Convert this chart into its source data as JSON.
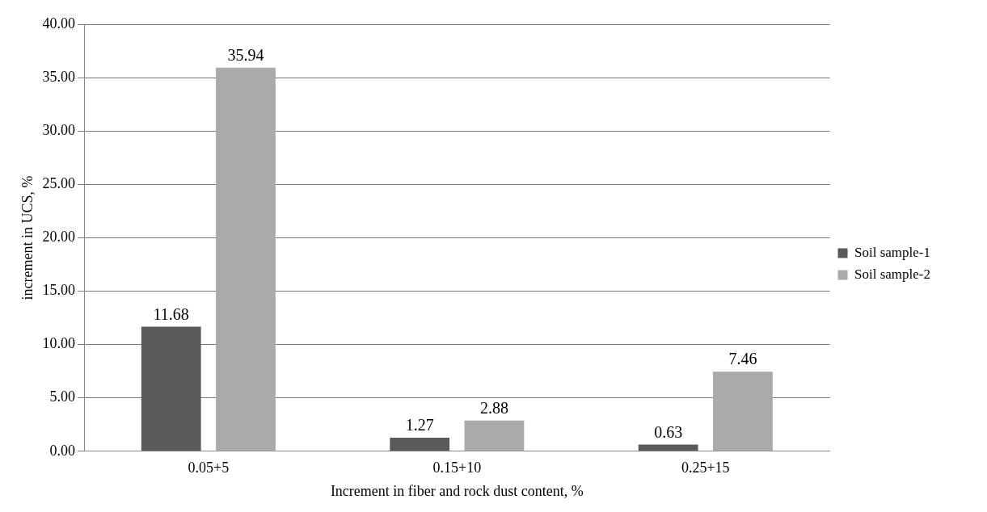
{
  "chart_data": {
    "type": "bar",
    "xlabel": "Increment in fiber and rock dust content, %",
    "ylabel": "increment in UCS, %",
    "categories": [
      "0.05+5",
      "0.15+10",
      "0.25+15"
    ],
    "series": [
      {
        "name": "Soil sample-1",
        "color": "#5a5a5a",
        "values": [
          11.68,
          1.27,
          0.63
        ]
      },
      {
        "name": "Soil sample-2",
        "color": "#aaaaaa",
        "values": [
          35.94,
          2.88,
          7.46
        ]
      }
    ],
    "ylim": [
      0,
      40
    ],
    "yticks": [
      {
        "value": 0,
        "label": "0.00"
      },
      {
        "value": 5,
        "label": "5.00"
      },
      {
        "value": 10,
        "label": "10.00"
      },
      {
        "value": 15,
        "label": "15.00"
      },
      {
        "value": 20,
        "label": "20.00"
      },
      {
        "value": 25,
        "label": "25.00"
      },
      {
        "value": 30,
        "label": "30.00"
      },
      {
        "value": 35,
        "label": "35.00"
      },
      {
        "value": 40,
        "label": "40.00"
      }
    ],
    "grid": "y",
    "legend": "right",
    "data_labels": true
  }
}
